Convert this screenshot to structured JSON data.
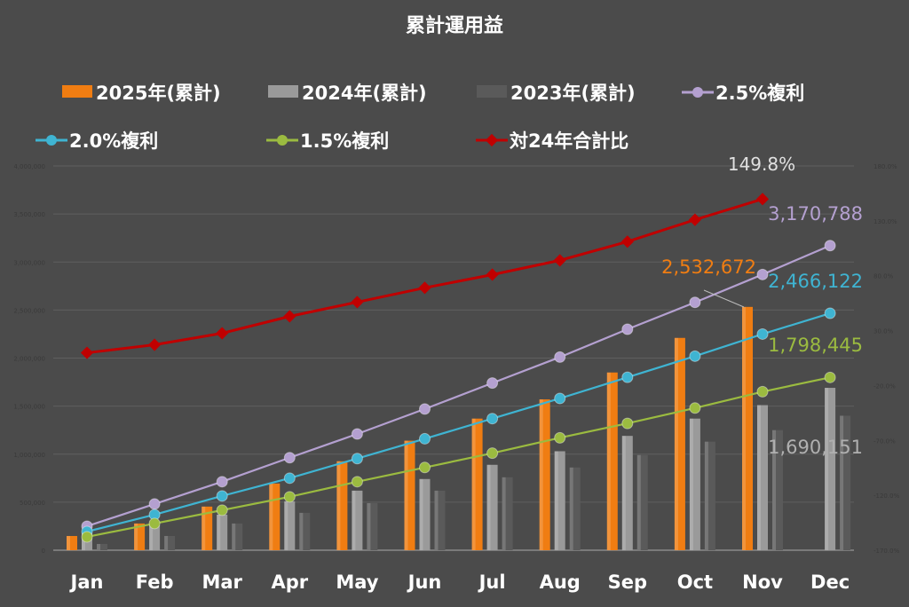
{
  "chart_data": {
    "type": "bar",
    "title": "累計運用益",
    "categories": [
      "Jan",
      "Feb",
      "Mar",
      "Apr",
      "May",
      "Jun",
      "Jul",
      "Aug",
      "Sep",
      "Oct",
      "Nov",
      "Dec"
    ],
    "ylim": [
      0,
      4000000
    ],
    "yticks": [
      "0",
      "500,000",
      "1,000,000",
      "1,500,000",
      "2,000,000",
      "2,500,000",
      "3,000,000",
      "3,500,000",
      "4,000,000"
    ],
    "y2lim": [
      -170,
      180
    ],
    "y2ticks": [
      "-170.0%",
      "-120.0%",
      "-70.0%",
      "-20.0%",
      "30.0%",
      "80.0%",
      "130.0%",
      "180.0%"
    ],
    "legend_position": "top",
    "series": [
      {
        "name": "2025年(累計)",
        "kind": "bar",
        "color": "#f07d12",
        "offset": -1,
        "values": [
          148000,
          278000,
          454000,
          694000,
          926000,
          1140000,
          1370000,
          1570000,
          1850000,
          2210000,
          2532672,
          null
        ],
        "label": "2,532,672",
        "label_index": 10
      },
      {
        "name": "2024年(累計)",
        "kind": "bar",
        "color": "#9a9a9a",
        "offset": 0,
        "values": [
          185000,
          260000,
          370000,
          509000,
          620000,
          741000,
          889000,
          1030000,
          1190000,
          1370000,
          1510000,
          1690151
        ],
        "label": "1,690,151",
        "label_index": 11
      },
      {
        "name": "2023年(累計)",
        "kind": "bar",
        "color": "#5a5a5a",
        "offset": 1,
        "values": [
          65000,
          148000,
          278000,
          389000,
          490000,
          620000,
          759000,
          861000,
          991000,
          1130000,
          1250000,
          1400000
        ]
      },
      {
        "name": "2.5%複利",
        "kind": "line",
        "color": "#b4a0d0",
        "values": [
          250000,
          481000,
          713000,
          963000,
          1210000,
          1470000,
          1740000,
          2010000,
          2300000,
          2580000,
          2870000,
          3170788
        ],
        "label": "3,170,788",
        "label_index": 11
      },
      {
        "name": "2.0%複利",
        "kind": "line",
        "color": "#3fb4d2",
        "values": [
          194000,
          370000,
          565000,
          750000,
          954000,
          1160000,
          1370000,
          1580000,
          1800000,
          2020000,
          2250000,
          2466122
        ],
        "label": "2,466,122",
        "label_index": 11
      },
      {
        "name": "1.5%複利",
        "kind": "line",
        "color": "#9bbb40",
        "values": [
          139000,
          278000,
          417000,
          556000,
          713000,
          861000,
          1010000,
          1170000,
          1320000,
          1480000,
          1650000,
          1798445
        ],
        "label": "1,798,445",
        "label_index": 11
      },
      {
        "name": "対24年合計比",
        "kind": "line",
        "axis": "right",
        "color": "#c00000",
        "values": [
          9.8,
          17.1,
          27.6,
          43,
          56,
          69,
          81,
          94,
          111,
          131,
          149.8,
          null
        ],
        "label": "149.8%",
        "label_index": 10
      }
    ]
  }
}
